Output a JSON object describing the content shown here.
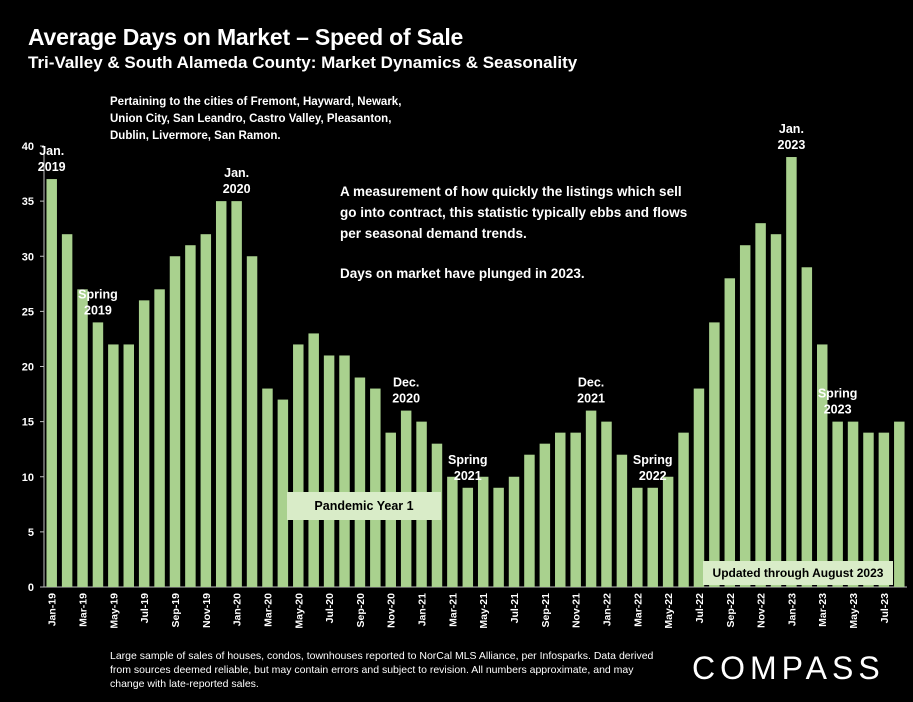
{
  "header": {
    "title": "Average Days on Market – Speed of Sale",
    "subtitle": "Tri-Valley & South Alameda County: Market Dynamics & Seasonality"
  },
  "cities_note": "Pertaining to the cities of Fremont, Hayward, Newark, Union City, San Leandro, Castro Valley, Pleasanton, Dublin, Livermore, San Ramon.",
  "description": {
    "line1": "A measurement of how quickly the listings which sell go into contract, this statistic typically ebbs and flows per seasonal demand trends.",
    "line2": "Days on market have plunged in 2023."
  },
  "labels": {
    "pandemic": "Pandemic Year 1",
    "updated": "Updated through August 2023"
  },
  "footer": "Large sample of sales of houses, condos, townhouses reported to NorCal MLS Alliance, per Infosparks. Data derived from sources deemed reliable, but may contain errors and subject to revision. All numbers approximate, and may change with late-reported sales.",
  "logo": "COMPASS",
  "colors": {
    "bar": "#a9d18e",
    "background": "#000000",
    "text": "#ffffff",
    "label_box": "#d9ecc8"
  },
  "chart_data": {
    "type": "bar",
    "title": "Average Days on Market – Speed of Sale",
    "ylim": [
      0,
      40
    ],
    "yticks": [
      0,
      5,
      10,
      15,
      20,
      25,
      30,
      35,
      40
    ],
    "grid": false,
    "categories": [
      "Jan-19",
      "Feb-19",
      "Mar-19",
      "Apr-19",
      "May-19",
      "Jun-19",
      "Jul-19",
      "Aug-19",
      "Sep-19",
      "Oct-19",
      "Nov-19",
      "Dec-19",
      "Jan-20",
      "Feb-20",
      "Mar-20",
      "Apr-20",
      "May-20",
      "Jun-20",
      "Jul-20",
      "Aug-20",
      "Sep-20",
      "Oct-20",
      "Nov-20",
      "Dec-20",
      "Jan-21",
      "Feb-21",
      "Mar-21",
      "Apr-21",
      "May-21",
      "Jun-21",
      "Jul-21",
      "Aug-21",
      "Sep-21",
      "Oct-21",
      "Nov-21",
      "Dec-21",
      "Jan-22",
      "Feb-22",
      "Mar-22",
      "Apr-22",
      "May-22",
      "Jun-22",
      "Jul-22",
      "Aug-22",
      "Sep-22",
      "Oct-22",
      "Nov-22",
      "Dec-22",
      "Jan-23",
      "Feb-23",
      "Mar-23",
      "Apr-23",
      "May-23",
      "Jun-23",
      "Jul-23",
      "Aug-23"
    ],
    "tick_labels": [
      "Jan-19",
      "Mar-19",
      "May-19",
      "Jul-19",
      "Sep-19",
      "Nov-19",
      "Jan-20",
      "Mar-20",
      "May-20",
      "Jul-20",
      "Sep-20",
      "Nov-20",
      "Jan-21",
      "Mar-21",
      "May-21",
      "Jul-21",
      "Sep-21",
      "Nov-21",
      "Jan-22",
      "Mar-22",
      "May-22",
      "Jul-22",
      "Sep-22",
      "Nov-22",
      "Jan-23",
      "Mar-23",
      "May-23",
      "Jul-23"
    ],
    "values": [
      37,
      32,
      27,
      24,
      22,
      22,
      26,
      27,
      30,
      31,
      32,
      35,
      35,
      30,
      18,
      17,
      22,
      23,
      21,
      21,
      19,
      18,
      14,
      16,
      15,
      13,
      10,
      9,
      10,
      9,
      10,
      12,
      13,
      14,
      14,
      16,
      15,
      12,
      9,
      9,
      10,
      14,
      18,
      24,
      28,
      31,
      33,
      32,
      39,
      29,
      22,
      15,
      15,
      14,
      14,
      15
    ],
    "annotations": [
      {
        "text": [
          "Jan.",
          "2019"
        ],
        "category": "Jan-19"
      },
      {
        "text": [
          "Spring",
          "2019"
        ],
        "category": "Apr-19"
      },
      {
        "text": [
          "Jan.",
          "2020"
        ],
        "category": "Jan-20"
      },
      {
        "text": [
          "Dec.",
          "2020"
        ],
        "category": "Dec-20"
      },
      {
        "text": [
          "Spring",
          "2021"
        ],
        "category": "Apr-21"
      },
      {
        "text": [
          "Dec.",
          "2021"
        ],
        "category": "Dec-21"
      },
      {
        "text": [
          "Spring",
          "2022"
        ],
        "category": "Apr-22"
      },
      {
        "text": [
          "Jan.",
          "2023"
        ],
        "category": "Jan-23"
      },
      {
        "text": [
          "Spring",
          "2023"
        ],
        "category": "Apr-23"
      }
    ]
  }
}
